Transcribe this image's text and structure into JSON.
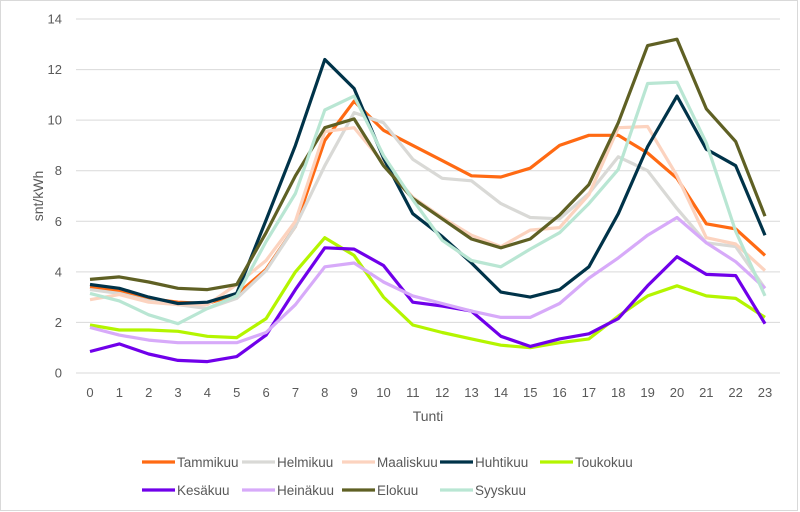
{
  "chart_data": {
    "type": "line",
    "title": "",
    "xlabel": "Tunti",
    "ylabel": "snt/kWh",
    "ylim": [
      0,
      14
    ],
    "yticks": [
      0,
      2,
      4,
      6,
      8,
      10,
      12,
      14
    ],
    "grid": true,
    "legend_position": "bottom",
    "x": [
      0,
      1,
      2,
      3,
      4,
      5,
      6,
      7,
      8,
      9,
      10,
      11,
      12,
      13,
      14,
      15,
      16,
      17,
      18,
      19,
      20,
      21,
      22,
      23
    ],
    "series": [
      {
        "name": "Tammikuu",
        "color": "#ff6a13",
        "values": [
          3.4,
          3.25,
          2.95,
          2.8,
          2.75,
          3.1,
          4.1,
          5.8,
          9.2,
          10.75,
          9.6,
          9.0,
          8.4,
          7.8,
          7.75,
          8.1,
          9.0,
          9.4,
          9.4,
          8.7,
          7.7,
          5.9,
          5.7,
          4.65
        ]
      },
      {
        "name": "Helmikuu",
        "color": "#d9d9d6",
        "values": [
          3.3,
          3.15,
          2.85,
          2.7,
          2.55,
          2.95,
          4.05,
          5.8,
          8.2,
          10.3,
          9.9,
          8.45,
          7.7,
          7.6,
          6.7,
          6.15,
          6.1,
          7.1,
          8.55,
          8.0,
          6.5,
          5.15,
          5.0,
          3.35
        ]
      },
      {
        "name": "Maaliskuu",
        "color": "#fcd3bf",
        "values": [
          2.9,
          3.1,
          2.8,
          2.7,
          2.7,
          3.5,
          4.45,
          6.0,
          9.55,
          9.7,
          8.3,
          6.95,
          6.15,
          5.45,
          5.0,
          5.65,
          5.75,
          7.05,
          9.7,
          9.75,
          7.8,
          5.35,
          5.1,
          4.05
        ]
      },
      {
        "name": "Huhtikuu",
        "color": "#003349",
        "values": [
          3.5,
          3.35,
          3.0,
          2.75,
          2.8,
          3.15,
          6.05,
          9.0,
          12.4,
          11.25,
          8.5,
          6.3,
          5.4,
          4.35,
          3.2,
          3.0,
          3.3,
          4.2,
          6.3,
          8.95,
          10.95,
          8.85,
          8.2,
          5.45
        ]
      },
      {
        "name": "Toukokuu",
        "color": "#b4f500",
        "values": [
          1.9,
          1.7,
          1.7,
          1.65,
          1.45,
          1.4,
          2.15,
          4.0,
          5.35,
          4.65,
          3.0,
          1.9,
          1.6,
          1.35,
          1.1,
          1.0,
          1.2,
          1.35,
          2.25,
          3.05,
          3.45,
          3.05,
          2.95,
          2.2
        ]
      },
      {
        "name": "Kesäkuu",
        "color": "#7000ea",
        "values": [
          0.85,
          1.15,
          0.75,
          0.5,
          0.45,
          0.65,
          1.5,
          3.3,
          4.95,
          4.9,
          4.25,
          2.8,
          2.65,
          2.45,
          1.45,
          1.05,
          1.35,
          1.55,
          2.15,
          3.45,
          4.6,
          3.9,
          3.85,
          1.95
        ]
      },
      {
        "name": "Heinäkuu",
        "color": "#d7aaf9",
        "values": [
          1.8,
          1.5,
          1.3,
          1.2,
          1.2,
          1.2,
          1.6,
          2.7,
          4.2,
          4.35,
          3.6,
          3.05,
          2.75,
          2.45,
          2.2,
          2.2,
          2.75,
          3.75,
          4.55,
          5.45,
          6.15,
          5.15,
          4.4,
          3.35
        ]
      },
      {
        "name": "Elokuu",
        "color": "#5f6024",
        "values": [
          3.7,
          3.8,
          3.6,
          3.35,
          3.3,
          3.5,
          5.55,
          7.8,
          9.7,
          10.05,
          8.2,
          6.9,
          6.1,
          5.3,
          4.95,
          5.3,
          6.25,
          7.45,
          9.9,
          12.95,
          13.2,
          10.45,
          9.15,
          6.2
        ]
      },
      {
        "name": "Syyskuu",
        "color": "#b9e6d3",
        "values": [
          3.15,
          2.85,
          2.3,
          1.95,
          2.55,
          3.05,
          5.2,
          7.1,
          10.4,
          10.95,
          8.6,
          6.85,
          5.25,
          4.45,
          4.2,
          4.9,
          5.55,
          6.7,
          8.05,
          11.45,
          11.5,
          9.1,
          5.6,
          3.05
        ]
      }
    ]
  }
}
